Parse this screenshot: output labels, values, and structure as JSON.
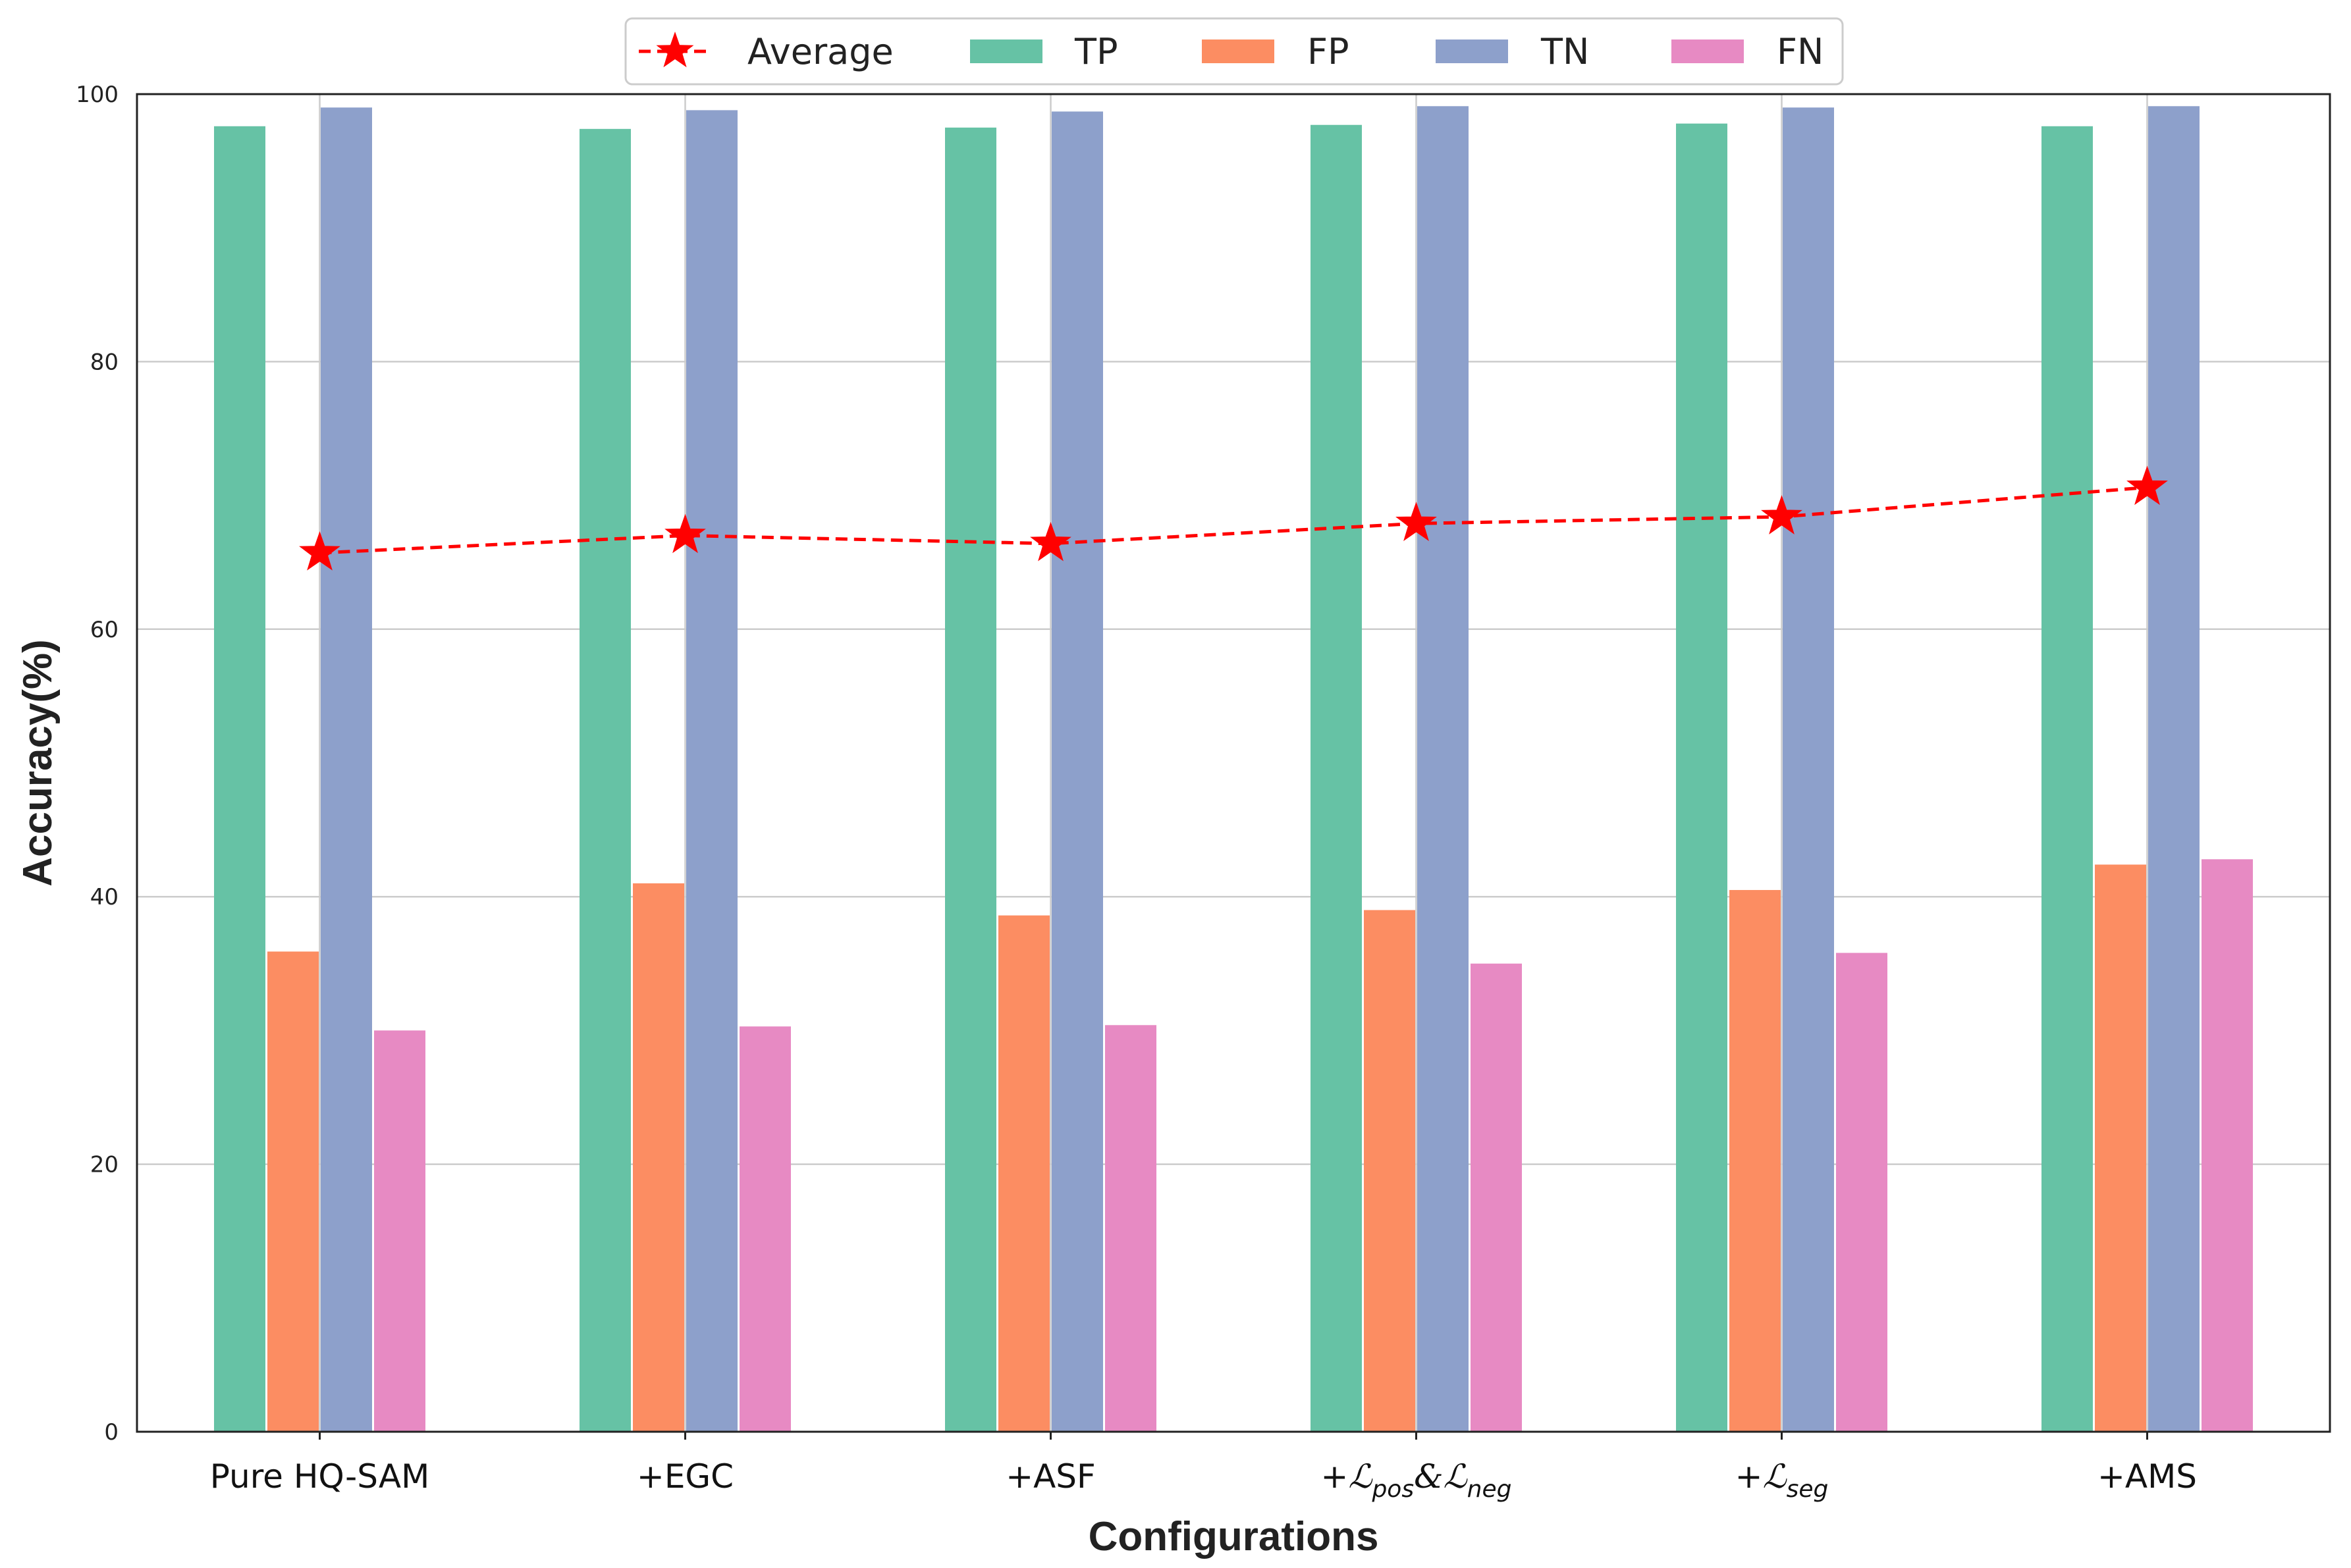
{
  "chart_data": {
    "type": "bar",
    "categories": [
      "Pure HQ-SAM",
      "+EGC",
      "+ASF",
      "+ℒpos&ℒneg",
      "+ℒseg",
      "+AMS"
    ],
    "category_labels": [
      {
        "main": "Pure HQ-SAM"
      },
      {
        "main": "+EGC"
      },
      {
        "main": "+ASF"
      },
      {
        "main": "+",
        "parts": [
          {
            "t": "ℒ",
            "sub": "pos"
          },
          {
            "t": "&ℒ",
            "sub": "neg"
          }
        ]
      },
      {
        "main": "+",
        "parts": [
          {
            "t": "ℒ",
            "sub": "seg"
          }
        ]
      },
      {
        "main": "+AMS"
      }
    ],
    "series": [
      {
        "name": "TP",
        "kind": "bar",
        "color": "#66c2a5",
        "values": [
          97.6,
          97.4,
          97.5,
          97.7,
          97.8,
          97.6
        ]
      },
      {
        "name": "FP",
        "kind": "bar",
        "color": "#fc8d62",
        "values": [
          35.9,
          41.0,
          38.6,
          39.0,
          40.5,
          42.4
        ]
      },
      {
        "name": "TN",
        "kind": "bar",
        "color": "#8da0cb",
        "values": [
          99.0,
          98.8,
          98.7,
          99.1,
          99.0,
          99.1
        ]
      },
      {
        "name": "FN",
        "kind": "bar",
        "color": "#e78ac3",
        "values": [
          30.0,
          30.3,
          30.4,
          35.0,
          35.8,
          42.8
        ]
      },
      {
        "name": "Average",
        "kind": "line",
        "style": "dashed",
        "marker": "star",
        "color": "#ff0000",
        "values": [
          65.7,
          67.0,
          66.4,
          67.9,
          68.4,
          70.6
        ]
      }
    ],
    "xlabel": "Configurations",
    "ylabel": "Accuracy(%)",
    "ylim": [
      0,
      100
    ],
    "yticks": [
      0,
      20,
      40,
      60,
      80,
      100
    ],
    "grid": "horizontal",
    "legend": {
      "placement": "top-center",
      "order": [
        "Average",
        "TP",
        "FP",
        "TN",
        "FN"
      ]
    }
  }
}
